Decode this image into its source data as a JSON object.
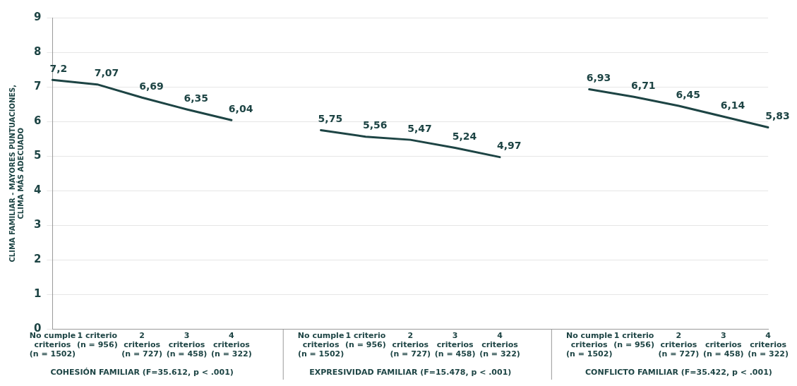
{
  "chart_data": {
    "type": "line",
    "ylabel": "CLIMA FAMILIAR - MAYORES PUNTUACIONES, CLIMA MÁS ADECUADO",
    "categories": [
      "No cumple criterios (n = 1502)",
      "1 criterio (n = 956)",
      "2 criterios (n = 727)",
      "3 criterios (n = 458)",
      "4 criterios (n = 322)",
      null,
      "No cumple criterios (n = 1502)",
      "1 criterio (n = 956)",
      "2 criterios (n = 727)",
      "3 criterios (n = 458)",
      "4 criterios (n = 322)",
      null,
      "No cumple criterios (n = 1502)",
      "1 criterio (n = 956)",
      "2 criterios (n = 727)",
      "3 criterios (n = 458)",
      "4 criterios (n = 322)"
    ],
    "series": [
      {
        "color": "#1d4444",
        "values": [
          7.2,
          7.07,
          6.69,
          6.35,
          6.04,
          null,
          null,
          null,
          null,
          null,
          null,
          null,
          null,
          null,
          null,
          null,
          null
        ],
        "value_labels": [
          "7,2",
          "7,07",
          "6,69",
          "6,35",
          "6,04",
          null,
          null,
          null,
          null,
          null,
          null,
          null,
          null,
          null,
          null,
          null,
          null
        ]
      },
      {
        "color": "#1d4444",
        "values": [
          null,
          null,
          null,
          null,
          null,
          null,
          5.75,
          5.56,
          5.47,
          5.24,
          4.97,
          null,
          null,
          null,
          null,
          null,
          null
        ],
        "value_labels": [
          null,
          null,
          null,
          null,
          null,
          null,
          "5,75",
          "5,56",
          "5,47",
          "5,24",
          "4,97",
          null,
          null,
          null,
          null,
          null,
          null
        ]
      },
      {
        "color": "#1d4444",
        "values": [
          null,
          null,
          null,
          null,
          null,
          null,
          null,
          null,
          null,
          null,
          null,
          null,
          6.93,
          6.71,
          6.45,
          6.14,
          5.83
        ],
        "value_labels": [
          null,
          null,
          null,
          null,
          null,
          null,
          null,
          null,
          null,
          null,
          null,
          null,
          "6,93",
          "6,71",
          "6,45",
          "6,14",
          "5,83"
        ]
      }
    ],
    "annotations": [
      "COHESIÓN FAMILIAR (F=35.612, p < .001)",
      "EXPRESIVIDAD FAMILIAR (F=15.478, p < .001)",
      "CONFLICTO FAMILIAR (F=35.422, p < .001)"
    ],
    "ylim": [
      0,
      9
    ],
    "yticks": [
      0,
      1,
      2,
      3,
      4,
      5,
      6,
      7,
      8,
      9
    ],
    "grid": "y",
    "legend": false,
    "marker": "none",
    "line_style": "solid"
  }
}
